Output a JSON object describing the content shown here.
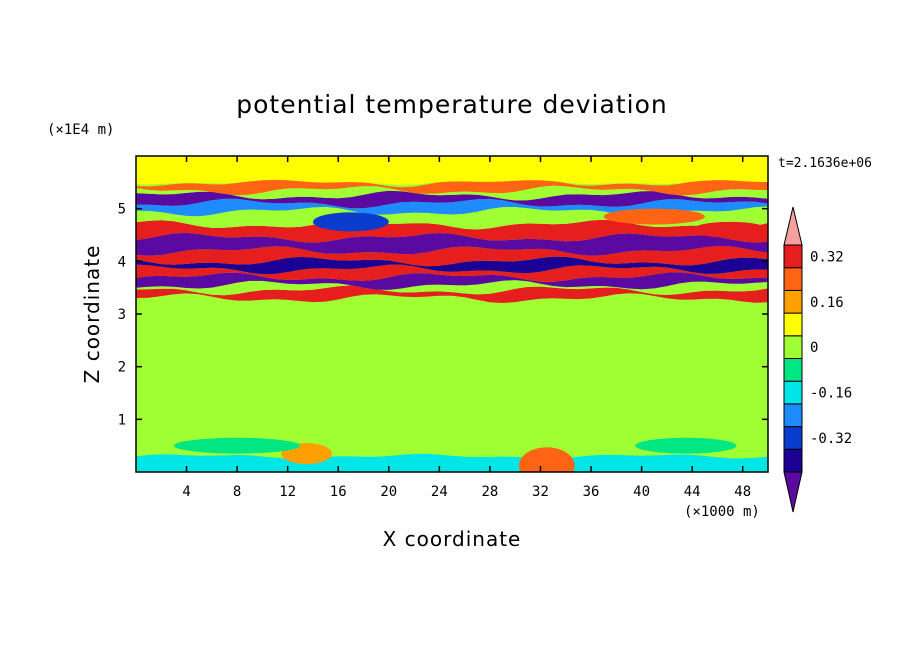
{
  "chart_data": {
    "type": "heatmap",
    "title": "potential temperature deviation",
    "xlabel": "X coordinate",
    "ylabel": "Z coordinate",
    "x_unit": "(×1000 m)",
    "y_unit": "(×1E4 m)",
    "time_label": "t=2.1636e+06",
    "xlim": [
      0,
      50
    ],
    "ylim": [
      0,
      6
    ],
    "x_ticks": [
      4,
      8,
      12,
      16,
      20,
      24,
      28,
      32,
      36,
      40,
      44,
      48
    ],
    "x_tick_labels": [
      "4",
      "8",
      "12",
      "16",
      "20",
      "24",
      "28",
      "32",
      "36",
      "40",
      "44",
      "48"
    ],
    "y_ticks": [
      1,
      2,
      3,
      4,
      5
    ],
    "y_tick_labels": [
      "1",
      "2",
      "3",
      "4",
      "5"
    ],
    "colorbar": {
      "levels": [
        -0.4,
        -0.32,
        -0.24,
        -0.16,
        -0.08,
        0,
        0.08,
        0.16,
        0.24,
        0.32,
        0.4
      ],
      "colors": [
        "#5a0aa0",
        "#1c0096",
        "#0a3ccd",
        "#1e8cff",
        "#00e6e6",
        "#00e682",
        "#a0ff32",
        "#ffff00",
        "#ffa000",
        "#ff6414",
        "#e61e1e",
        "#f5a0a0"
      ],
      "tick_values": [
        -0.32,
        -0.16,
        0,
        0.16,
        0.32
      ],
      "tick_labels": [
        "-0.32",
        "-0.16",
        "0",
        "0.16",
        "0.32"
      ]
    },
    "bands": [
      {
        "z": 0.0,
        "value": -0.1
      },
      {
        "z": 0.3,
        "value": 0.02
      },
      {
        "z": 1.0,
        "value": 0.0
      },
      {
        "z": 2.0,
        "value": 0.05
      },
      {
        "z": 3.0,
        "value": 0.03
      },
      {
        "z": 3.3,
        "value": 0.34
      },
      {
        "z": 3.45,
        "value": 0.06
      },
      {
        "z": 3.55,
        "value": -0.42
      },
      {
        "z": 3.7,
        "value": 0.36
      },
      {
        "z": 3.85,
        "value": -0.38
      },
      {
        "z": 4.0,
        "value": 0.33
      },
      {
        "z": 4.2,
        "value": -0.41
      },
      {
        "z": 4.45,
        "value": 0.37
      },
      {
        "z": 4.7,
        "value": 0.04
      },
      {
        "z": 4.95,
        "value": -0.18
      },
      {
        "z": 5.1,
        "value": -0.42
      },
      {
        "z": 5.25,
        "value": 0.05
      },
      {
        "z": 5.35,
        "value": 0.3
      },
      {
        "z": 5.5,
        "value": 0.08
      },
      {
        "z": 6.0,
        "value": 0.05
      }
    ],
    "features": [
      {
        "x": 32.5,
        "z": 0.12,
        "rx": 2.2,
        "rz": 0.35,
        "value": 0.3
      },
      {
        "x": 13.5,
        "z": 0.35,
        "rx": 2.0,
        "rz": 0.2,
        "value": 0.18
      },
      {
        "x": 8.0,
        "z": 0.5,
        "rx": 5.0,
        "rz": 0.15,
        "value": -0.08
      },
      {
        "x": 43.5,
        "z": 0.5,
        "rx": 4.0,
        "rz": 0.15,
        "value": -0.08
      },
      {
        "x": 17.0,
        "z": 4.75,
        "rx": 3.0,
        "rz": 0.18,
        "value": -0.32
      },
      {
        "x": 41.0,
        "z": 4.85,
        "rx": 4.0,
        "rz": 0.15,
        "value": 0.28
      },
      {
        "x": 47.0,
        "z": 4.6,
        "rx": 3.0,
        "rz": 0.15,
        "value": 0.35
      }
    ]
  }
}
